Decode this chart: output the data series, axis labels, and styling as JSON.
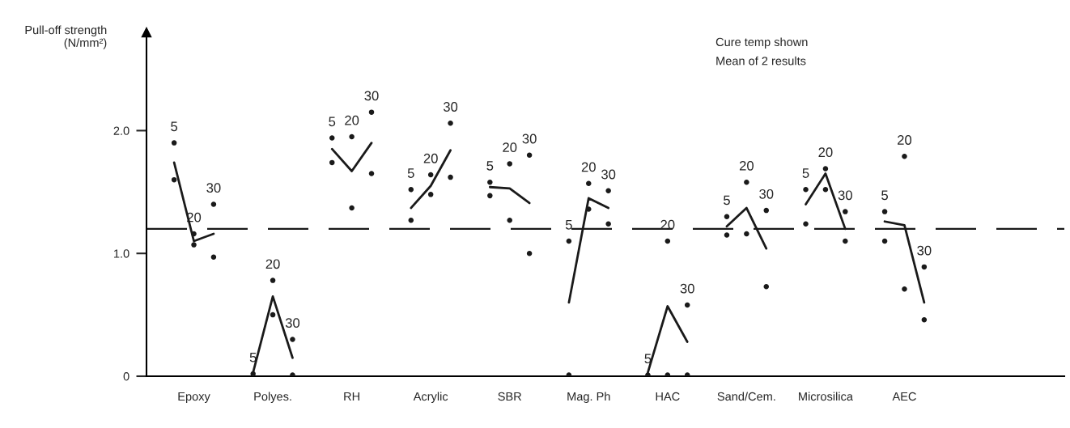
{
  "chart_data": {
    "type": "scatter",
    "ylabel": "Pull-off strength\n(N/mm²)",
    "categories": [
      null,
      "Epoxy",
      null,
      null,
      null,
      "Polyes.",
      null,
      null,
      null,
      "RH",
      null,
      null,
      null,
      "Acrylic",
      null,
      null,
      null,
      "SBR",
      null,
      null,
      null,
      "Mag. Ph",
      null,
      null,
      null,
      "HAC",
      null,
      null,
      null,
      "Sand/Cem.",
      null,
      null,
      null,
      "Microsilica",
      null,
      null,
      null,
      "AEC",
      null,
      null
    ],
    "ylim": [
      0,
      2.8
    ],
    "yticks": [
      0,
      {
        "value": 1,
        "label": "1.0"
      },
      {
        "value": 2,
        "label": "2.0"
      }
    ],
    "grid": false,
    "series": [
      {
        "name": "5",
        "color": "#1a1a1a",
        "marker": "circle",
        "values": [
          1.9,
          null,
          null,
          null,
          0.02,
          null,
          null,
          null,
          1.94,
          null,
          null,
          null,
          1.52,
          null,
          null,
          null,
          1.58,
          null,
          null,
          null,
          1.1,
          null,
          null,
          null,
          0.01,
          null,
          null,
          null,
          1.3,
          null,
          null,
          null,
          1.52,
          null,
          null,
          null,
          1.34,
          null,
          null,
          null
        ]
      },
      {
        "name": "20",
        "color": "#1a1a1a",
        "marker": "circle",
        "values": [
          null,
          1.16,
          null,
          null,
          null,
          0.78,
          null,
          null,
          null,
          1.95,
          null,
          null,
          null,
          1.64,
          null,
          null,
          null,
          1.73,
          null,
          null,
          null,
          1.57,
          null,
          null,
          null,
          1.1,
          null,
          null,
          null,
          1.58,
          null,
          null,
          null,
          1.69,
          null,
          null,
          null,
          1.79,
          null,
          null
        ]
      },
      {
        "name": "30",
        "color": "#1a1a1a",
        "marker": "circle",
        "values": [
          null,
          null,
          1.4,
          null,
          null,
          null,
          0.3,
          null,
          null,
          null,
          2.15,
          null,
          null,
          null,
          2.06,
          null,
          null,
          null,
          1.8,
          null,
          null,
          null,
          1.51,
          null,
          null,
          null,
          0.58,
          null,
          null,
          null,
          1.35,
          null,
          null,
          null,
          1.34,
          null,
          null,
          null,
          0.89,
          null
        ]
      },
      {
        "color": "#1a1a1a",
        "marker": "circle",
        "values": [
          1.6,
          1.07,
          0.97,
          null,
          null,
          0.5,
          0.01,
          null,
          1.74,
          1.37,
          1.65,
          null,
          1.27,
          1.48,
          1.62,
          null,
          1.47,
          1.27,
          1.0,
          null,
          0.01,
          1.36,
          1.24,
          null,
          null,
          0.01,
          0.01,
          null,
          1.15,
          1.16,
          0.73,
          null,
          1.24,
          1.52,
          1.1,
          null,
          1.1,
          0.71,
          0.46,
          null
        ]
      },
      {
        "type": "line",
        "color": "#1a1a1a",
        "values": [
          1.74,
          1.1,
          1.16,
          null,
          0.03,
          0.65,
          0.15,
          null,
          1.85,
          1.67,
          1.9,
          null,
          1.37,
          1.55,
          1.84,
          null,
          1.54,
          1.53,
          1.41,
          null,
          0.6,
          1.45,
          1.37,
          null,
          0.03,
          0.57,
          0.28,
          null,
          1.22,
          1.37,
          1.04,
          null,
          1.4,
          1.65,
          1.2,
          null,
          1.26,
          1.23,
          0.6,
          null
        ]
      }
    ],
    "ref_lines": [
      {
        "axis": "y",
        "value": 1.2,
        "color": "#1a1a1a",
        "line_style": "dashed"
      }
    ],
    "annotations": [
      "Cure temp shown",
      "Mean of 2 results"
    ]
  }
}
